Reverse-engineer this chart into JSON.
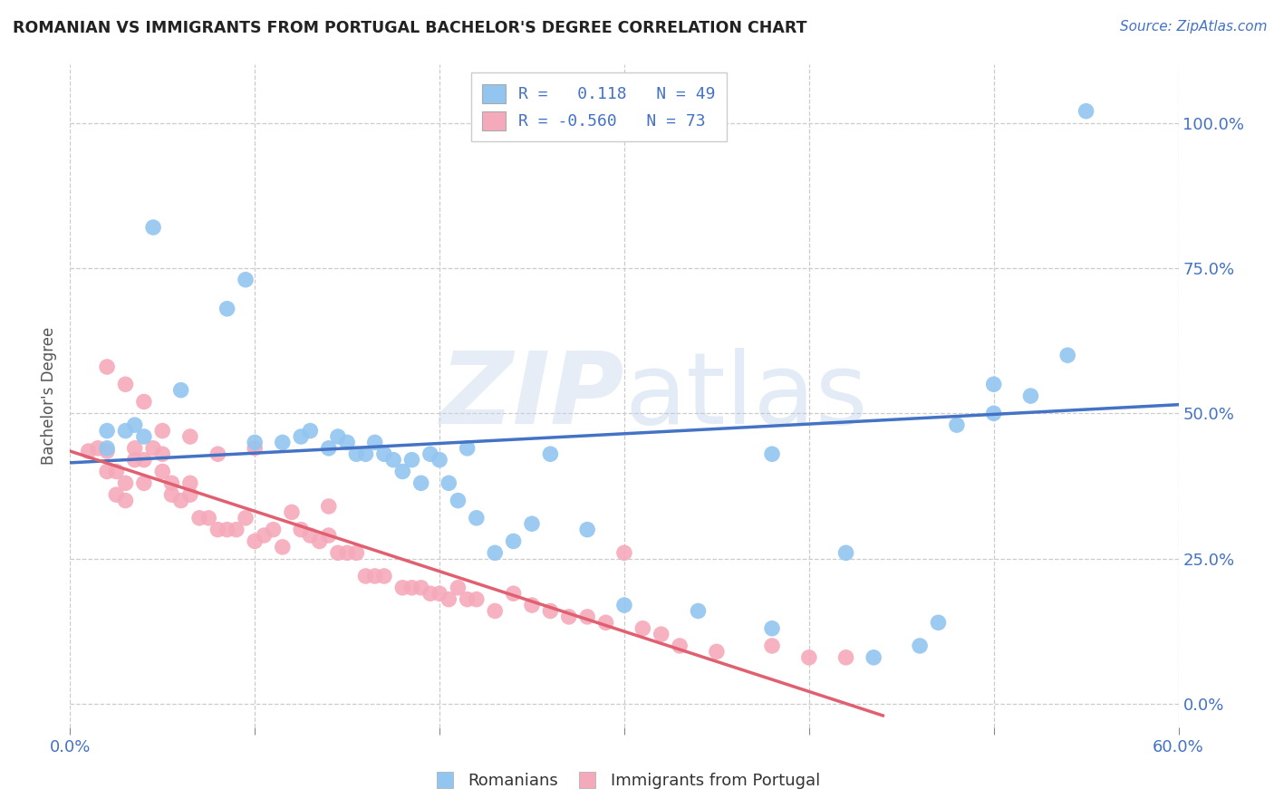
{
  "title": "ROMANIAN VS IMMIGRANTS FROM PORTUGAL BACHELOR'S DEGREE CORRELATION CHART",
  "source": "Source: ZipAtlas.com",
  "ylabel": "Bachelor's Degree",
  "yticks": [
    "0.0%",
    "25.0%",
    "50.0%",
    "75.0%",
    "100.0%"
  ],
  "ytick_vals": [
    0.0,
    0.25,
    0.5,
    0.75,
    1.0
  ],
  "xtick_vals": [
    0.0,
    0.1,
    0.2,
    0.3,
    0.4,
    0.5,
    0.6
  ],
  "xlim": [
    0.0,
    0.6
  ],
  "ylim": [
    -0.04,
    1.1
  ],
  "color_blue": "#92C5F0",
  "color_pink": "#F5AABB",
  "line_blue": "#4472C4",
  "line_pink": "#E06070",
  "watermark_zip": "ZIP",
  "watermark_atlas": "atlas",
  "blue_line_x": [
    0.0,
    0.6
  ],
  "blue_line_y": [
    0.415,
    0.515
  ],
  "pink_line_x": [
    0.0,
    0.44
  ],
  "pink_line_y": [
    0.435,
    -0.02
  ],
  "blue_scatter_x": [
    0.02,
    0.045,
    0.085,
    0.095,
    0.1,
    0.115,
    0.125,
    0.13,
    0.14,
    0.145,
    0.15,
    0.155,
    0.16,
    0.165,
    0.17,
    0.175,
    0.18,
    0.185,
    0.19,
    0.195,
    0.2,
    0.205,
    0.21,
    0.215,
    0.22,
    0.23,
    0.24,
    0.25,
    0.26,
    0.28,
    0.3,
    0.34,
    0.38,
    0.42,
    0.435,
    0.46,
    0.47,
    0.5,
    0.54,
    0.02,
    0.03,
    0.035,
    0.04,
    0.06,
    0.52,
    0.5,
    0.48,
    0.38,
    0.55
  ],
  "blue_scatter_y": [
    0.44,
    0.82,
    0.68,
    0.73,
    0.45,
    0.45,
    0.46,
    0.47,
    0.44,
    0.46,
    0.45,
    0.43,
    0.43,
    0.45,
    0.43,
    0.42,
    0.4,
    0.42,
    0.38,
    0.43,
    0.42,
    0.38,
    0.35,
    0.44,
    0.32,
    0.26,
    0.28,
    0.31,
    0.43,
    0.3,
    0.17,
    0.16,
    0.13,
    0.26,
    0.08,
    0.1,
    0.14,
    0.55,
    0.6,
    0.47,
    0.47,
    0.48,
    0.46,
    0.54,
    0.53,
    0.5,
    0.48,
    0.43,
    1.02
  ],
  "pink_scatter_x": [
    0.01,
    0.015,
    0.02,
    0.02,
    0.025,
    0.025,
    0.03,
    0.03,
    0.035,
    0.035,
    0.04,
    0.04,
    0.045,
    0.05,
    0.05,
    0.055,
    0.055,
    0.06,
    0.065,
    0.065,
    0.07,
    0.075,
    0.08,
    0.085,
    0.09,
    0.095,
    0.1,
    0.105,
    0.11,
    0.115,
    0.12,
    0.125,
    0.13,
    0.135,
    0.14,
    0.145,
    0.15,
    0.155,
    0.16,
    0.165,
    0.17,
    0.18,
    0.185,
    0.19,
    0.195,
    0.2,
    0.205,
    0.21,
    0.215,
    0.22,
    0.23,
    0.24,
    0.25,
    0.26,
    0.27,
    0.28,
    0.29,
    0.3,
    0.31,
    0.32,
    0.33,
    0.35,
    0.38,
    0.4,
    0.42,
    0.02,
    0.03,
    0.04,
    0.05,
    0.065,
    0.08,
    0.1,
    0.14
  ],
  "pink_scatter_y": [
    0.435,
    0.44,
    0.4,
    0.435,
    0.4,
    0.36,
    0.38,
    0.35,
    0.44,
    0.42,
    0.38,
    0.42,
    0.44,
    0.43,
    0.4,
    0.38,
    0.36,
    0.35,
    0.36,
    0.38,
    0.32,
    0.32,
    0.3,
    0.3,
    0.3,
    0.32,
    0.28,
    0.29,
    0.3,
    0.27,
    0.33,
    0.3,
    0.29,
    0.28,
    0.29,
    0.26,
    0.26,
    0.26,
    0.22,
    0.22,
    0.22,
    0.2,
    0.2,
    0.2,
    0.19,
    0.19,
    0.18,
    0.2,
    0.18,
    0.18,
    0.16,
    0.19,
    0.17,
    0.16,
    0.15,
    0.15,
    0.14,
    0.26,
    0.13,
    0.12,
    0.1,
    0.09,
    0.1,
    0.08,
    0.08,
    0.58,
    0.55,
    0.52,
    0.47,
    0.46,
    0.43,
    0.44,
    0.34
  ]
}
